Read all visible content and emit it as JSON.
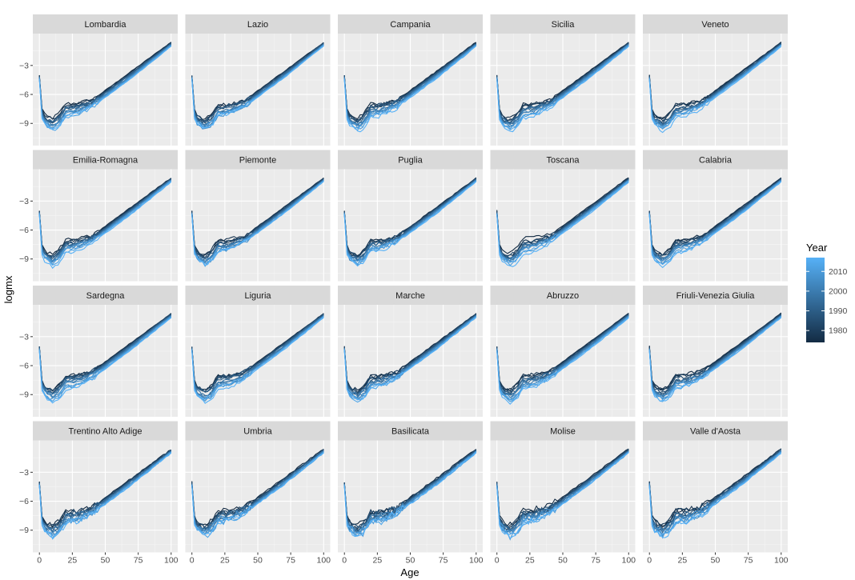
{
  "chart_data": {
    "type": "line",
    "layout": "facet_wrap",
    "facet_cols": 5,
    "xlabel": "Age",
    "ylabel": "logmx",
    "xlim": [
      0,
      100
    ],
    "ylim": [
      -11.3,
      0.3
    ],
    "x_ticks": [
      0,
      25,
      50,
      75,
      100
    ],
    "y_ticks": [
      -3,
      -6,
      -9
    ],
    "grid": true,
    "legend": {
      "title": "Year",
      "position": "right",
      "breaks": [
        2010,
        2000,
        1990,
        1980
      ],
      "range": [
        1974,
        2017
      ],
      "color_low": "#132B43",
      "color_high": "#56B1F7"
    },
    "series_description": "One log mortality curve per year (1974-2017) for each region; curves colored by year.",
    "panels": [
      {
        "title": "Lombardia"
      },
      {
        "title": "Lazio"
      },
      {
        "title": "Campania"
      },
      {
        "title": "Sicilia"
      },
      {
        "title": "Veneto"
      },
      {
        "title": "Emilia-Romagna"
      },
      {
        "title": "Piemonte"
      },
      {
        "title": "Puglia"
      },
      {
        "title": "Toscana"
      },
      {
        "title": "Calabria"
      },
      {
        "title": "Sardegna"
      },
      {
        "title": "Liguria"
      },
      {
        "title": "Marche"
      },
      {
        "title": "Abruzzo"
      },
      {
        "title": "Friuli-Venezia Giulia"
      },
      {
        "title": "Trentino Alto Adige"
      },
      {
        "title": "Umbria"
      },
      {
        "title": "Basilicata"
      },
      {
        "title": "Molise"
      },
      {
        "title": "Valle d'Aosta"
      }
    ],
    "representative_curve": {
      "age": [
        0,
        1,
        3,
        5,
        10,
        15,
        20,
        25,
        30,
        40,
        50,
        60,
        70,
        80,
        90,
        100
      ],
      "logmx_earliest_year": [
        -4.0,
        -7.0,
        -8.0,
        -8.3,
        -8.5,
        -8.0,
        -7.0,
        -7.0,
        -6.9,
        -6.6,
        -5.6,
        -4.6,
        -3.6,
        -2.6,
        -1.6,
        -0.6
      ],
      "logmx_latest_year": [
        -4.4,
        -8.2,
        -8.9,
        -9.2,
        -9.7,
        -9.3,
        -8.3,
        -8.2,
        -8.0,
        -7.3,
        -6.3,
        -5.3,
        -4.3,
        -3.2,
        -2.1,
        -1.0
      ]
    }
  }
}
